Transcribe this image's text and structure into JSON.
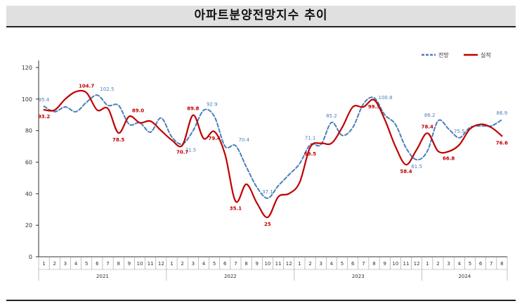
{
  "title": "아파트분양전망지수 추이",
  "colors": {
    "forecast": "#4a7ebb",
    "actual": "#c00000",
    "axis": "#333333"
  },
  "chart_data": {
    "type": "line",
    "title": "아파트분양전망지수 추이",
    "xlabel": "",
    "ylabel": "",
    "ylim": [
      0,
      120
    ],
    "yticks": [
      0,
      20,
      40,
      60,
      80,
      100,
      120
    ],
    "grid": false,
    "legend": "top-right",
    "months": [
      "1",
      "2",
      "3",
      "4",
      "5",
      "6",
      "7",
      "8",
      "9",
      "10",
      "11",
      "12",
      "1",
      "2",
      "3",
      "4",
      "5",
      "6",
      "7",
      "8",
      "9",
      "10",
      "11",
      "12",
      "1",
      "2",
      "3",
      "4",
      "5",
      "6",
      "7",
      "8",
      "9",
      "10",
      "11",
      "12",
      "1",
      "2",
      "3",
      "4",
      "5",
      "6",
      "7",
      "8"
    ],
    "years": [
      {
        "label": "2021",
        "months": 12
      },
      {
        "label": "2022",
        "months": 12
      },
      {
        "label": "2023",
        "months": 12
      },
      {
        "label": "2024",
        "months": 8
      }
    ],
    "series": [
      {
        "name": "전망",
        "style": "dashed",
        "color": "#4a7ebb",
        "values": [
          95.4,
          92,
          95,
          92,
          98,
          102.5,
          96,
          96,
          84,
          85,
          79,
          88,
          76,
          71.5,
          80,
          92.9,
          89,
          70,
          70.4,
          57,
          44,
          37.1,
          45,
          52,
          59,
          71.1,
          71,
          85.2,
          77,
          82,
          97,
          100.8,
          90,
          84,
          69,
          61.5,
          67,
          86.2,
          81,
          75.5,
          82,
          83,
          83,
          86.9
        ],
        "labels": [
          {
            "i": 0,
            "text": "95.4",
            "pos": "above"
          },
          {
            "i": 5,
            "text": "102.5",
            "pos": "above-right"
          },
          {
            "i": 13,
            "text": "71.5",
            "pos": "below-right"
          },
          {
            "i": 15,
            "text": "92.9",
            "pos": "above-right"
          },
          {
            "i": 18,
            "text": "70.4",
            "pos": "above-right"
          },
          {
            "i": 21,
            "text": "37.1",
            "pos": "above"
          },
          {
            "i": 25,
            "text": "71.1",
            "pos": "above"
          },
          {
            "i": 27,
            "text": "85.2",
            "pos": "above"
          },
          {
            "i": 31,
            "text": "100.8",
            "pos": "right"
          },
          {
            "i": 35,
            "text": "61.5",
            "pos": "below"
          },
          {
            "i": 37,
            "text": "86.2",
            "pos": "above-left"
          },
          {
            "i": 39,
            "text": "75.5",
            "pos": "above"
          },
          {
            "i": 43,
            "text": "86.9",
            "pos": "above"
          }
        ]
      },
      {
        "name": "실적",
        "style": "solid",
        "color": "#c00000",
        "values": [
          93.2,
          93,
          100,
          104.7,
          104,
          93,
          94,
          78.5,
          89,
          85,
          86,
          80,
          74,
          70.7,
          89.8,
          75,
          79.4,
          65,
          35.1,
          46,
          34,
          25,
          38,
          40,
          47,
          69.5,
          72,
          72,
          82,
          95,
          95,
          99.5,
          87,
          70,
          58.4,
          68,
          78.4,
          67,
          66.8,
          71,
          81,
          84,
          82,
          76.6
        ],
        "labels": [
          {
            "i": 0,
            "text": "93.2",
            "pos": "below"
          },
          {
            "i": 3,
            "text": "104.7",
            "pos": "above-right"
          },
          {
            "i": 7,
            "text": "78.5",
            "pos": "below"
          },
          {
            "i": 8,
            "text": "89.0",
            "pos": "above-right"
          },
          {
            "i": 13,
            "text": "70.7",
            "pos": "below"
          },
          {
            "i": 14,
            "text": "89.8",
            "pos": "above"
          },
          {
            "i": 16,
            "text": "79.4",
            "pos": "below"
          },
          {
            "i": 18,
            "text": "35.1",
            "pos": "below"
          },
          {
            "i": 21,
            "text": "25",
            "pos": "below"
          },
          {
            "i": 25,
            "text": "69.5",
            "pos": "below"
          },
          {
            "i": 31,
            "text": "99.5",
            "pos": "below"
          },
          {
            "i": 34,
            "text": "58.4",
            "pos": "below"
          },
          {
            "i": 36,
            "text": "78.4",
            "pos": "above"
          },
          {
            "i": 38,
            "text": "66.8",
            "pos": "below"
          },
          {
            "i": 43,
            "text": "76.6",
            "pos": "below"
          }
        ]
      }
    ]
  }
}
